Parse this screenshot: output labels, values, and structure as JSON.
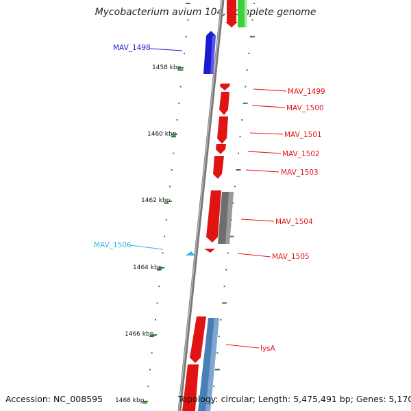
{
  "title": "Mycobacterium avium 104, complete genome",
  "footer": {
    "accession": "Accession: NC_008595",
    "topology": "Topology: circular; Length: 5,475,491 bp; Genes: 5,170"
  },
  "colors": {
    "backbone": "#888888",
    "tick": "#2e7d32",
    "gene_red": "#e11414",
    "gene_blue": "#1a1ad0",
    "gene_gray": "#6e6e6e",
    "gene_steel": "#4a7fb5",
    "gene_green": "#3ad13a",
    "gene_cyan": "#29b6e6"
  },
  "kbp_labels": [
    "1458 kbp",
    "1460 kbp",
    "1462 kbp",
    "1464 kbp",
    "1466 kbp",
    "1468 kbp"
  ],
  "gene_labels": [
    {
      "id": "MAV_1498",
      "text": "MAV_1498",
      "color": "#1a1ad0"
    },
    {
      "id": "MAV_1499",
      "text": "MAV_1499",
      "color": "#e11414"
    },
    {
      "id": "MAV_1500",
      "text": "MAV_1500",
      "color": "#e11414"
    },
    {
      "id": "MAV_1501",
      "text": "MAV_1501",
      "color": "#e11414"
    },
    {
      "id": "MAV_1502",
      "text": "MAV_1502",
      "color": "#e11414"
    },
    {
      "id": "MAV_1503",
      "text": "MAV_1503",
      "color": "#e11414"
    },
    {
      "id": "MAV_1504",
      "text": "MAV_1504",
      "color": "#e11414"
    },
    {
      "id": "MAV_1505",
      "text": "MAV_1505",
      "color": "#e11414"
    },
    {
      "id": "MAV_1506",
      "text": "MAV_1506",
      "color": "#29b6e6"
    },
    {
      "id": "lysA",
      "text": "lysA",
      "color": "#e11414"
    }
  ]
}
